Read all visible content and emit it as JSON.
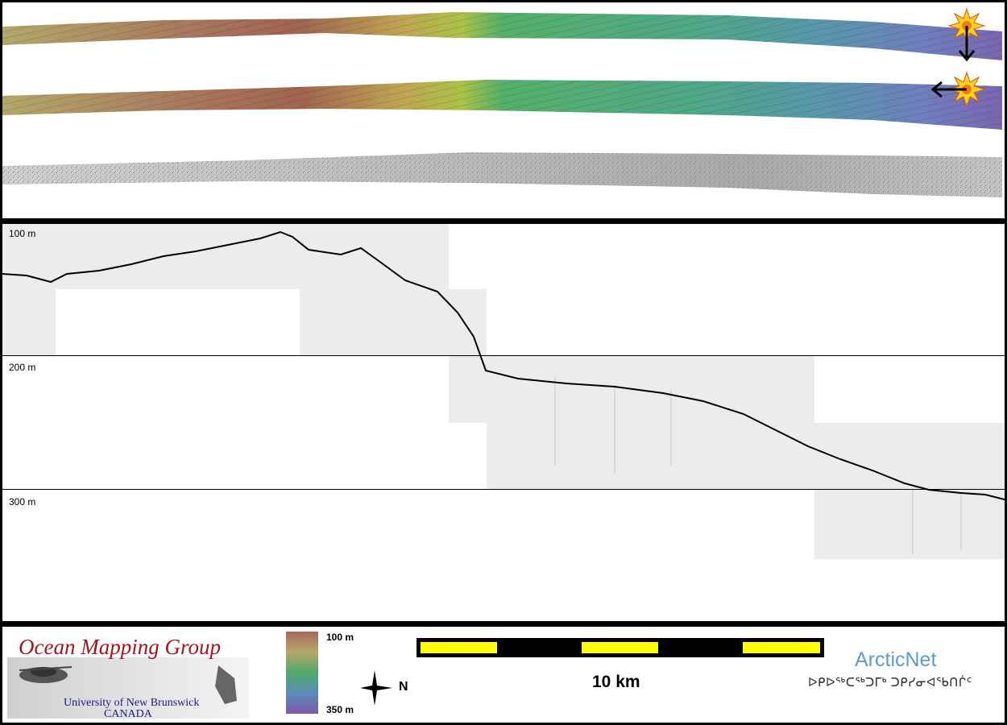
{
  "profile": {
    "depth_labels": [
      "100 m",
      "200 m",
      "300 m"
    ]
  },
  "footer": {
    "logo": {
      "title": "Ocean Mapping Group",
      "university": "University of New Brunswick",
      "country": "CANADA"
    },
    "colorbar": {
      "top_label": "100 m",
      "bottom_label": "350 m"
    },
    "north_arrow": {
      "label": "N"
    },
    "scale_bar": {
      "label": "10 km",
      "colors": [
        "#ffff00",
        "#000000"
      ]
    },
    "arcticnet": {
      "title": "ArcticNet",
      "syllabics": "ᐅᑭᐅᖅᑕᖅᑐᒥᒃ ᑐᑭᓯᓂᐊᖃᑎᒌᑦ"
    }
  },
  "colors": {
    "shallow": "#b9a46a",
    "mid": "#5aa86e",
    "deep": "#6b6fb8",
    "backscatter": "#c8c8c8",
    "sun": "#ffd21a"
  }
}
